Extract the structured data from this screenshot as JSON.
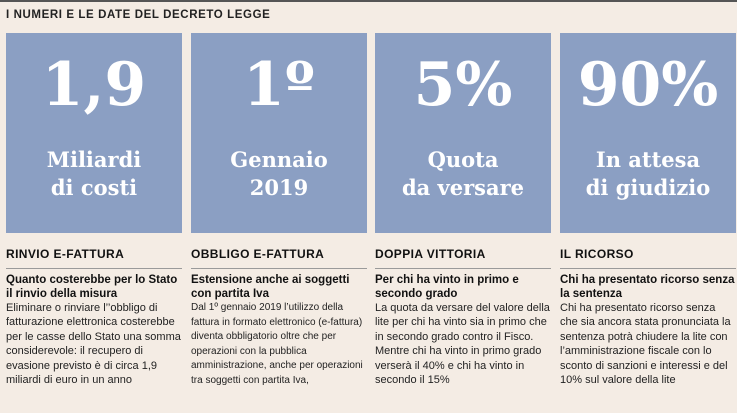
{
  "header": {
    "title": "I NUMERI E LE DATE DEL DECRETO LEGGE"
  },
  "columns": [
    {
      "value": "1,9",
      "caption": "Miliardi\ndi costi",
      "section_title": "RINVIO E-FATTURA",
      "lead": "Quanto costerebbe per lo Stato il rinvio della misura",
      "body": "Eliminare o rinviare l’’obbligo di fatturazione elettronica costerebbe per le casse dello Stato una somma considerevole: il recupero di evasione previsto è di circa 1,9 miliardi di euro in un anno"
    },
    {
      "value": "1º",
      "caption": "Gennaio\n2019",
      "section_title": "OBBLIGO E-FATTURA",
      "lead": "Estensione anche ai soggetti con partita Iva",
      "body": "Dal 1º gennaio 2019 l’utilizzo della fattura in formato elettronico (e-fattura) diventa obbligatorio oltre che per operazioni con la pubblica amministrazione, anche per operazioni tra soggetti con partita Iva,"
    },
    {
      "value": "5%",
      "caption": "Quota\nda versare",
      "section_title": "DOPPIA VITTORIA",
      "lead": "Per chi ha vinto in primo e secondo grado",
      "body": "La quota da versare del valore della lite per chi ha vinto sia in primo che in secondo grado contro il Fisco. Mentre chi ha vinto in primo grado verserà il 40% e chi ha vinto in secondo il 15%"
    },
    {
      "value": "90%",
      "caption": "In attesa\ndi giudizio",
      "section_title": "IL RICORSO",
      "lead": "Chi ha presentato ricorso senza la sentenza",
      "body": "Chi ha presentato ricorso senza che sia ancora stata pronunciata la sentenza potrà chiudere la lite con l’amministrazione fiscale con lo sconto di sanzioni e interessi e del 10% sul valore della lite"
    }
  ],
  "colors": {
    "hero_background": "#8b9fc3",
    "page_background": "#f4ece4",
    "text": "#1a1a1a"
  }
}
